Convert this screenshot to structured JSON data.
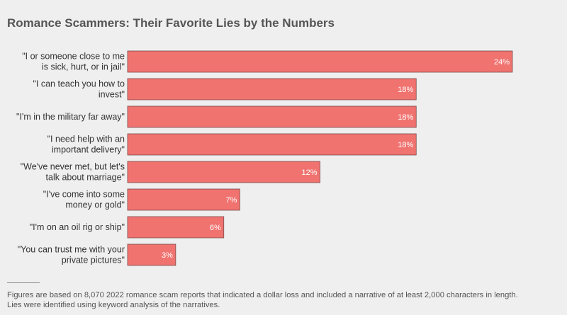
{
  "title": "Romance Scammers: Their Favorite Lies by the Numbers",
  "footnote": {
    "line1": "Figures are based on 8,070 2022 romance scam reports that indicated a dollar loss and included a narrative of at least 2,000 characters in length.",
    "line2": "Lies were identified using keyword analysis of the narratives."
  },
  "colors": {
    "bar": "#f07370",
    "bar_stroke": "#7a4a48",
    "label_text": "#333333",
    "value_text": "#ffffff"
  },
  "chart_data": {
    "type": "bar",
    "orientation": "horizontal",
    "title": "Romance Scammers: Their Favorite Lies by the Numbers",
    "categories": [
      [
        "\"I or someone close to me",
        "is sick, hurt, or in jail\""
      ],
      [
        "\"I can teach you how to",
        "invest\""
      ],
      [
        "\"I'm in the military far away\""
      ],
      [
        "\"I need help with an",
        "important delivery\""
      ],
      [
        "\"We've never met, but let's",
        "talk about marriage\""
      ],
      [
        "\"I've come into some",
        "money or gold\""
      ],
      [
        "\"I'm on an oil rig or ship\""
      ],
      [
        "\"You can trust me with your",
        "private pictures\""
      ]
    ],
    "values": [
      24,
      18,
      18,
      18,
      12,
      7,
      6,
      3
    ],
    "value_labels": [
      "24%",
      "18%",
      "18%",
      "18%",
      "12%",
      "7%",
      "6%",
      "3%"
    ],
    "unit": "%",
    "xlim": [
      0,
      24
    ],
    "grid": false,
    "legend": false
  }
}
